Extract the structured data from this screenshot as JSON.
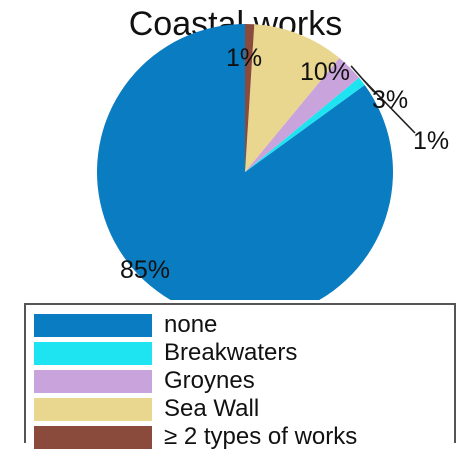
{
  "chart_data": {
    "type": "pie",
    "title": "Coastal works",
    "slices": [
      {
        "label": "none",
        "value": 85,
        "display": "85%",
        "color": "#0a7cc1"
      },
      {
        "label": "Breakwaters",
        "value": 1,
        "display": "1%",
        "color": "#1ee3f0"
      },
      {
        "label": "Groynes",
        "value": 3,
        "display": "3%",
        "color": "#c9a3dc"
      },
      {
        "label": "Sea Wall",
        "value": 10,
        "display": "10%",
        "color": "#e9d68f"
      },
      {
        "label": "≥ 2 types of works",
        "value": 1,
        "display": "1%",
        "color": "#8a4a3c"
      }
    ],
    "legend_position": "bottom"
  }
}
